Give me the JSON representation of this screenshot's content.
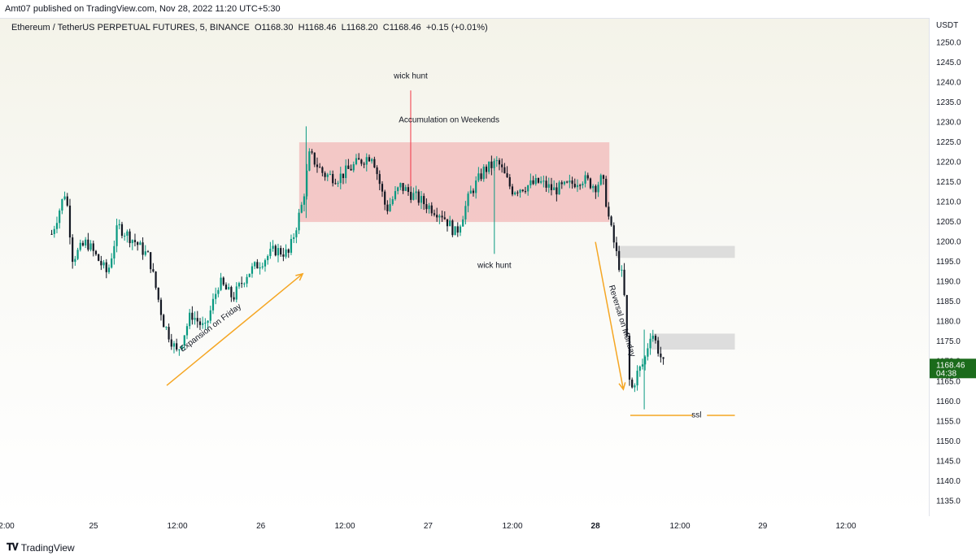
{
  "header": {
    "published": "Amt07 published on TradingView.com, Nov 28, 2022 11:20 UTC+5:30"
  },
  "symbol_info": {
    "name": "Ethereum / TetherUS PERPETUAL FUTURES, 5, BINANCE",
    "open": "O1168.30",
    "high": "H1168.46",
    "low": "L1168.20",
    "close": "C1168.46",
    "change": "+0.15 (+0.01%)"
  },
  "price_axis": {
    "currency": "USDT",
    "last_price": "1168.46",
    "countdown": "04:38",
    "last_color": "#1b6b1b"
  },
  "footer": {
    "logo_text": "TradingView"
  },
  "colors": {
    "up": "#089981",
    "down": "#131722",
    "zone": "#f2b8b8",
    "arrow": "#f5a623",
    "fvg": "#d9d9d9"
  },
  "chart_data": {
    "type": "candlestick",
    "y_ticks": [
      1135,
      1140,
      1145,
      1150,
      1155,
      1160,
      1165,
      1170,
      1175,
      1180,
      1185,
      1190,
      1195,
      1200,
      1205,
      1210,
      1215,
      1220,
      1225,
      1230,
      1235,
      1240,
      1245,
      1250
    ],
    "ylim": [
      1131,
      1256
    ],
    "x_tick_labels": [
      "2:00",
      "25",
      "12:00",
      "26",
      "12:00",
      "27",
      "12:00",
      "28",
      "12:00",
      "29",
      "12:00"
    ],
    "price_path": [
      {
        "t": "24 18:00",
        "p": 1202
      },
      {
        "t": "24 20:00",
        "p": 1213
      },
      {
        "t": "24 21:00",
        "p": 1196
      },
      {
        "t": "24 23:00",
        "p": 1200
      },
      {
        "t": "25 02:00",
        "p": 1192
      },
      {
        "t": "25 03:30",
        "p": 1204
      },
      {
        "t": "25 06:00",
        "p": 1200
      },
      {
        "t": "25 08:00",
        "p": 1196
      },
      {
        "t": "25 10:00",
        "p": 1180
      },
      {
        "t": "25 12:00",
        "p": 1172
      },
      {
        "t": "25 14:00",
        "p": 1182
      },
      {
        "t": "25 16:00",
        "p": 1178
      },
      {
        "t": "25 18:00",
        "p": 1190
      },
      {
        "t": "25 20:00",
        "p": 1186
      },
      {
        "t": "25 22:00",
        "p": 1192
      },
      {
        "t": "26 02:00",
        "p": 1198
      },
      {
        "t": "26 04:00",
        "p": 1197
      },
      {
        "t": "26 06:00",
        "p": 1210
      },
      {
        "t": "26 07:00",
        "p": 1222
      },
      {
        "t": "26 09:00",
        "p": 1217
      },
      {
        "t": "26 11:00",
        "p": 1216
      },
      {
        "t": "26 14:00",
        "p": 1220
      },
      {
        "t": "26 16:00",
        "p": 1222
      },
      {
        "t": "26 18:00",
        "p": 1208
      },
      {
        "t": "26 20:00",
        "p": 1214
      },
      {
        "t": "27 00:00",
        "p": 1209
      },
      {
        "t": "27 02:00",
        "p": 1207
      },
      {
        "t": "27 04:00",
        "p": 1202
      },
      {
        "t": "27 06:00",
        "p": 1212
      },
      {
        "t": "27 08:00",
        "p": 1218
      },
      {
        "t": "27 10:00",
        "p": 1220
      },
      {
        "t": "27 12:00",
        "p": 1213
      },
      {
        "t": "27 14:00",
        "p": 1214
      },
      {
        "t": "27 16:00",
        "p": 1215
      },
      {
        "t": "27 18:00",
        "p": 1213
      },
      {
        "t": "27 20:00",
        "p": 1214
      },
      {
        "t": "27 22:00",
        "p": 1216
      },
      {
        "t": "28 00:00",
        "p": 1214
      },
      {
        "t": "28 01:00",
        "p": 1216
      },
      {
        "t": "28 02:00",
        "p": 1205
      },
      {
        "t": "28 03:00",
        "p": 1197
      },
      {
        "t": "28 04:00",
        "p": 1190
      },
      {
        "t": "28 05:00",
        "p": 1162
      },
      {
        "t": "28 06:00",
        "p": 1167
      },
      {
        "t": "28 07:00",
        "p": 1170
      },
      {
        "t": "28 08:00",
        "p": 1178
      },
      {
        "t": "28 09:00",
        "p": 1173
      },
      {
        "t": "28 10:00",
        "p": 1168
      }
    ],
    "spikes": [
      {
        "t": "26 06:30",
        "high": 1229,
        "low": 1206
      },
      {
        "t": "26 21:30",
        "high": 1238,
        "low": 1214
      },
      {
        "t": "27 09:30",
        "high": 1221,
        "low": 1197
      },
      {
        "t": "28 07:00",
        "high": 1178,
        "low": 1158
      }
    ],
    "zones": [
      {
        "type": "accumulation",
        "t_start": "26 05:30",
        "t_end": "28 02:00",
        "top": 1225,
        "bottom": 1205
      }
    ],
    "fvgs": [
      {
        "t_start": "28 03:00",
        "t_end": "28 20:00",
        "top": 1199,
        "bottom": 1196
      },
      {
        "t_start": "28 08:00",
        "t_end": "28 20:00",
        "top": 1177,
        "bottom": 1173
      }
    ],
    "ssl_line": {
      "t_start": "28 05:00",
      "t_end": "28 20:00",
      "price": 1156.5
    },
    "annotations": [
      {
        "text": "wick hunt",
        "t": "26 21:30",
        "price": 1241
      },
      {
        "text": "Accumulation on Weekends",
        "t": "27 03:00",
        "price": 1230
      },
      {
        "text": "wick hunt",
        "t": "27 09:30",
        "price": 1193.5
      },
      {
        "text": "Expansion on Friday",
        "t": "25 17:00",
        "price": 1178
      },
      {
        "text": "Reversal on Monday",
        "t": "28 03:30",
        "price": 1180
      },
      {
        "text": "ssl",
        "t": "28 14:30",
        "price": 1156
      }
    ],
    "arrows": [
      {
        "from_t": "25 10:30",
        "from_p": 1164,
        "to_t": "26 06:00",
        "to_p": 1192
      },
      {
        "from_t": "28 00:00",
        "from_p": 1200,
        "to_t": "28 04:00",
        "to_p": 1163
      }
    ]
  }
}
